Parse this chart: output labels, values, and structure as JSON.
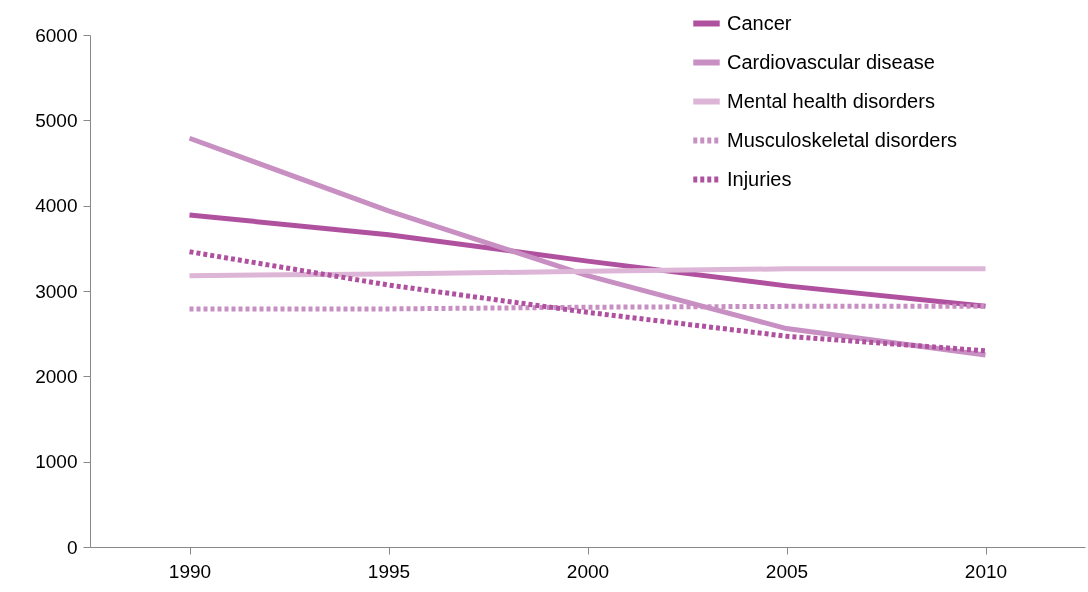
{
  "chart_data": {
    "type": "line",
    "categories": [
      "1990",
      "1995",
      "2000",
      "2005",
      "2010"
    ],
    "series": [
      {
        "name": "Cancer",
        "color": "#b0519f",
        "line_style": "solid",
        "values": [
          3890,
          3660,
          3350,
          3060,
          2820
        ]
      },
      {
        "name": "Cardiovascular disease",
        "color": "#c88fc2",
        "line_style": "solid",
        "values": [
          4790,
          3940,
          3180,
          2560,
          2250
        ]
      },
      {
        "name": "Mental health disorders",
        "color": "#ddb5d6",
        "line_style": "solid",
        "values": [
          3180,
          3200,
          3230,
          3260,
          3260
        ]
      },
      {
        "name": "Musculoskeletal disorders",
        "color": "#c88fc2",
        "line_style": "dotted",
        "values": [
          2790,
          2790,
          2810,
          2820,
          2820
        ]
      },
      {
        "name": "Injuries",
        "color": "#b0519f",
        "line_style": "dotted",
        "values": [
          3460,
          3070,
          2750,
          2470,
          2300
        ]
      }
    ],
    "ylim": [
      0,
      6000
    ],
    "yticks": [
      0,
      1000,
      2000,
      3000,
      4000,
      5000,
      6000
    ],
    "grid": false,
    "legend": "top right",
    "marker": "none"
  }
}
